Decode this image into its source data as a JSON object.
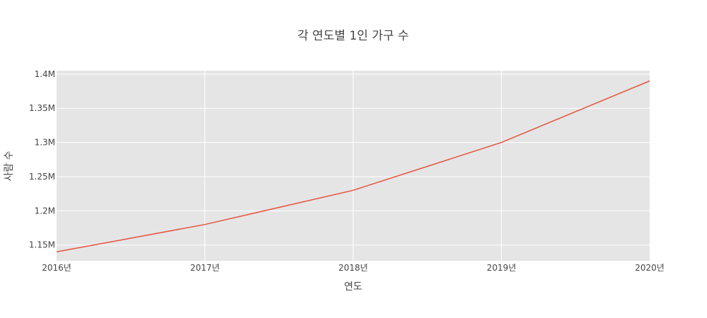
{
  "chart_data": {
    "type": "line",
    "title": "각 연도별 1인 가구 수",
    "xlabel": "연도",
    "ylabel": "사람 수",
    "categories": [
      "2016년",
      "2017년",
      "2018년",
      "2019년",
      "2020년"
    ],
    "series": [
      {
        "values": [
          1140000,
          1180000,
          1230000,
          1300000,
          1390000
        ],
        "color": "#e5533d"
      }
    ],
    "y_ticks": [
      1150000,
      1200000,
      1250000,
      1300000,
      1350000,
      1400000
    ],
    "y_tick_labels": [
      "1.15M",
      "1.2M",
      "1.25M",
      "1.3M",
      "1.35M",
      "1.4M"
    ],
    "ylim": [
      1127000,
      1405000
    ],
    "grid": true,
    "plot_background": "#e5e5e5",
    "grid_color": "#ffffff"
  }
}
